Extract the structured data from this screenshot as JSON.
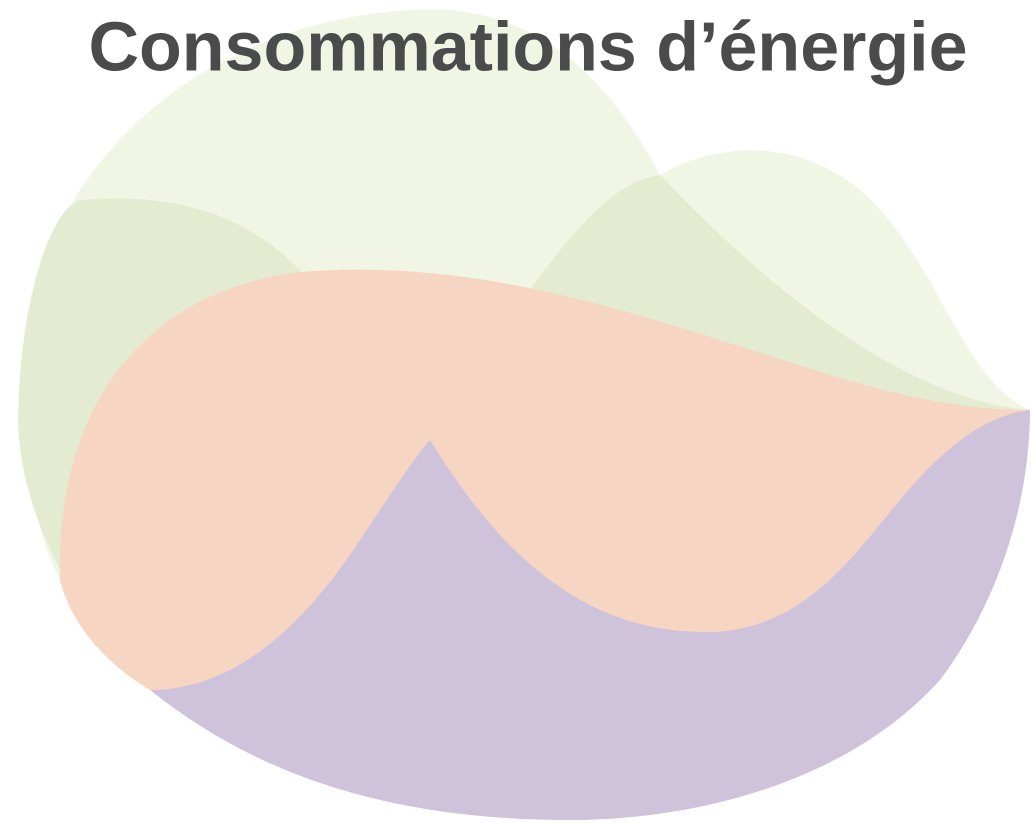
{
  "title": "Consommations d’énergie"
}
